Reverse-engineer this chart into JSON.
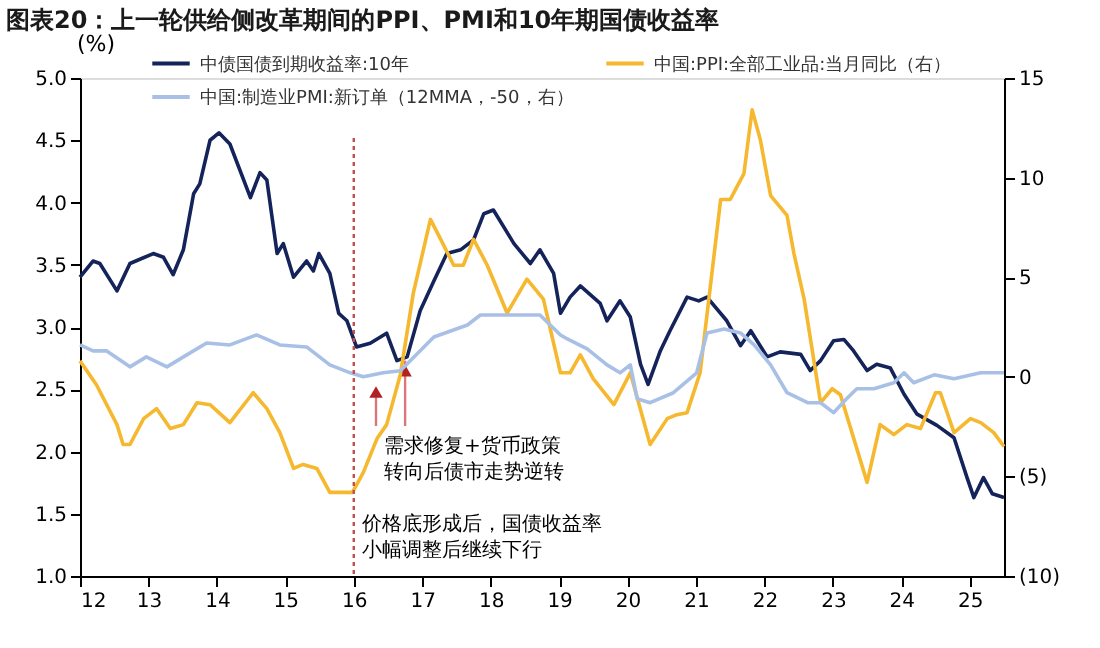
{
  "chart_data": {
    "type": "line",
    "title": "图表20：上一轮供给侧改革期间的PPI、PMI和10年期国债收益率",
    "ylabel": "(%)",
    "xlim": [
      12,
      25.5
    ],
    "xticks": [
      12,
      13,
      14,
      15,
      16,
      17,
      18,
      19,
      20,
      21,
      22,
      23,
      24,
      25
    ],
    "ylim": [
      1.0,
      5.0
    ],
    "yticks": [
      {
        "value": 1,
        "label": "1.0"
      },
      1.5,
      {
        "value": 2,
        "label": "2.0"
      },
      2.5,
      {
        "value": 3,
        "label": "3.0"
      },
      3.5,
      {
        "value": 4,
        "label": "4.0"
      },
      4.5,
      {
        "value": 5,
        "label": "5.0"
      }
    ],
    "y2lim": [
      -10,
      15
    ],
    "y2ticks": [
      {
        "value": -10,
        "label": "(10)"
      },
      {
        "value": -5,
        "label": "(5)"
      },
      0,
      5,
      10,
      15
    ],
    "grid": false,
    "legend": "top",
    "marker": "none",
    "series": [
      {
        "name": "中债国债到期收益率:10年",
        "color": "#14235a",
        "x": [
          12.0,
          12.19,
          12.29,
          12.54,
          12.73,
          13.07,
          13.22,
          13.36,
          13.51,
          13.66,
          13.75,
          13.9,
          14.03,
          14.19,
          14.49,
          14.63,
          14.73,
          14.88,
          14.97,
          15.12,
          15.31,
          15.41,
          15.49,
          15.65,
          15.78,
          15.9,
          16.04,
          16.24,
          16.48,
          16.63,
          16.78,
          16.97,
          17.17,
          17.36,
          17.56,
          17.75,
          17.9,
          18.04,
          18.34,
          18.58,
          18.72,
          18.92,
          19.02,
          19.16,
          19.31,
          19.6,
          19.7,
          19.89,
          20.04,
          20.19,
          20.3,
          20.48,
          20.62,
          20.87,
          21.04,
          21.16,
          21.45,
          21.65,
          21.8,
          22.04,
          22.23,
          22.53,
          22.67,
          22.82,
          23.01,
          23.16,
          23.3,
          23.5,
          23.64,
          23.84,
          24.04,
          24.23,
          24.52,
          24.77,
          24.96,
          25.06,
          25.2,
          25.33,
          25.5
        ],
        "values": [
          3.4,
          3.53,
          3.51,
          3.29,
          3.51,
          3.59,
          3.56,
          3.42,
          3.62,
          4.07,
          4.15,
          4.5,
          4.56,
          4.47,
          4.04,
          4.24,
          4.18,
          3.59,
          3.67,
          3.4,
          3.53,
          3.45,
          3.59,
          3.43,
          3.11,
          3.05,
          2.84,
          2.87,
          2.95,
          2.73,
          2.76,
          3.13,
          3.37,
          3.59,
          3.62,
          3.7,
          3.91,
          3.94,
          3.67,
          3.51,
          3.62,
          3.43,
          3.11,
          3.24,
          3.33,
          3.19,
          3.05,
          3.21,
          3.08,
          2.7,
          2.54,
          2.81,
          2.97,
          3.24,
          3.21,
          3.24,
          3.05,
          2.85,
          2.97,
          2.76,
          2.8,
          2.78,
          2.65,
          2.73,
          2.89,
          2.9,
          2.81,
          2.65,
          2.7,
          2.67,
          2.46,
          2.3,
          2.21,
          2.11,
          1.79,
          1.63,
          1.79,
          1.66,
          1.63
        ]
      },
      {
        "name": "中国:PPI:全部工业品:当月同比（右）",
        "color": "#f5b82e",
        "axis": "y2",
        "x": [
          12.0,
          12.24,
          12.54,
          12.63,
          12.73,
          12.93,
          13.12,
          13.32,
          13.51,
          13.71,
          13.9,
          14.19,
          14.53,
          14.73,
          14.92,
          15.12,
          15.26,
          15.46,
          15.65,
          15.98,
          16.14,
          16.34,
          16.48,
          16.68,
          16.87,
          17.12,
          17.27,
          17.46,
          17.6,
          17.75,
          17.95,
          18.24,
          18.53,
          18.77,
          19.02,
          19.16,
          19.31,
          19.5,
          19.8,
          20.04,
          20.33,
          20.58,
          20.72,
          20.87,
          21.06,
          21.36,
          21.5,
          21.7,
          21.82,
          21.94,
          22.09,
          22.33,
          22.43,
          22.58,
          22.82,
          22.99,
          23.11,
          23.5,
          23.69,
          23.89,
          24.08,
          24.28,
          24.5,
          24.57,
          24.77,
          25.01,
          25.16,
          25.35,
          25.5
        ],
        "values": [
          0.8,
          -0.4,
          -2.4,
          -3.4,
          -3.4,
          -2.1,
          -1.6,
          -2.6,
          -2.4,
          -1.3,
          -1.4,
          -2.3,
          -0.8,
          -1.6,
          -2.8,
          -4.6,
          -4.4,
          -4.6,
          -5.8,
          -5.8,
          -4.8,
          -3.1,
          -2.4,
          0.1,
          4.2,
          7.9,
          6.9,
          5.6,
          5.6,
          6.9,
          5.6,
          3.2,
          4.9,
          3.9,
          0.2,
          0.2,
          1.1,
          -0.1,
          -1.4,
          0.2,
          -3.4,
          -2.1,
          -1.9,
          -1.8,
          0.2,
          8.9,
          8.9,
          10.2,
          13.4,
          11.9,
          9.1,
          8.1,
          6.2,
          3.9,
          -1.3,
          -0.6,
          -0.9,
          -5.3,
          -2.4,
          -2.9,
          -2.4,
          -2.6,
          -0.8,
          -0.8,
          -2.8,
          -2.1,
          -2.3,
          -2.8,
          -3.5
        ]
      },
      {
        "name": "中国:制造业PMI:新订单（12MMA，-50，右）",
        "color": "#a9c0e6",
        "axis": "y2",
        "x": [
          12.0,
          12.19,
          12.39,
          12.73,
          12.97,
          13.27,
          13.56,
          13.85,
          14.19,
          14.58,
          14.92,
          15.31,
          15.65,
          15.95,
          16.14,
          16.43,
          16.68,
          17.17,
          17.66,
          17.85,
          18.14,
          18.43,
          18.72,
          19.02,
          19.12,
          19.41,
          19.7,
          19.89,
          20.04,
          20.14,
          20.33,
          20.67,
          21.01,
          21.16,
          21.41,
          21.65,
          21.85,
          22.09,
          22.33,
          22.63,
          22.82,
          23.01,
          23.2,
          23.35,
          23.6,
          23.89,
          24.04,
          24.18,
          24.48,
          24.77,
          25.16,
          25.5
        ],
        "values": [
          1.6,
          1.3,
          1.3,
          0.5,
          1.0,
          0.5,
          1.1,
          1.7,
          1.6,
          2.1,
          1.6,
          1.5,
          0.6,
          0.2,
          0.0,
          0.2,
          0.3,
          2.0,
          2.6,
          3.1,
          3.1,
          3.1,
          3.1,
          2.1,
          1.9,
          1.4,
          0.6,
          0.2,
          0.6,
          -1.1,
          -1.3,
          -0.8,
          0.2,
          2.2,
          2.4,
          2.2,
          1.6,
          0.6,
          -0.8,
          -1.3,
          -1.3,
          -1.8,
          -1.1,
          -0.6,
          -0.6,
          -0.3,
          0.2,
          -0.3,
          0.1,
          -0.1,
          0.2,
          0.2
        ]
      }
    ],
    "ref_lines": [
      {
        "axis": "x",
        "value": 16,
        "color": "#c0504d",
        "line_style": "dotted"
      }
    ],
    "annotations": [
      {
        "text": "需求修复+货币政策转向后债市走势逆转",
        "x": 16.75,
        "y": 2.73
      },
      "价格底形成后，国债收益率小幅调整后继续下行"
    ]
  }
}
